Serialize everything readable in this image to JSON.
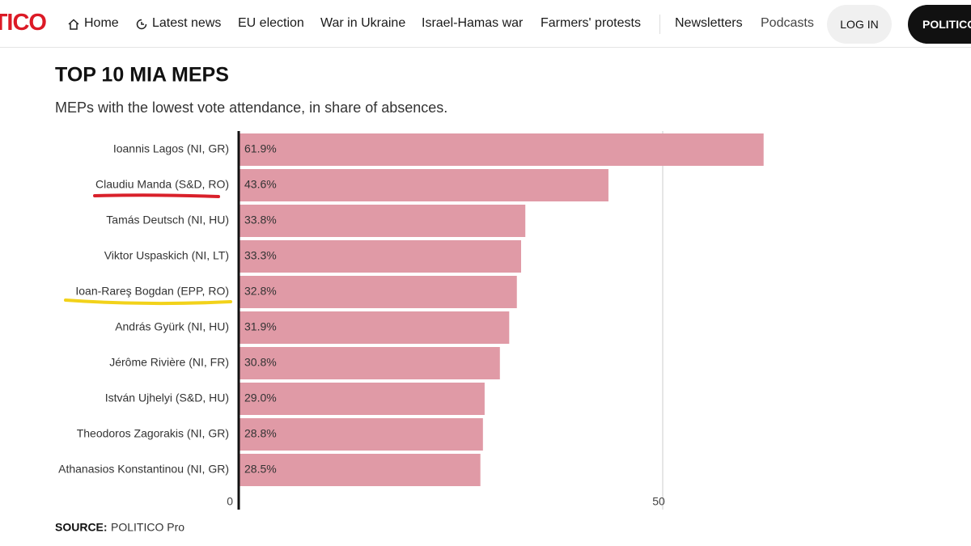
{
  "nav": {
    "logo": "POLITICO",
    "items": [
      "Home",
      "Latest news",
      "EU election",
      "War in Ukraine",
      "Israel-Hamas war",
      "Farmers' protests",
      "Newsletters",
      "Podcasts"
    ],
    "login": "LOG IN",
    "pro": "POLITICO"
  },
  "chart_data": {
    "type": "bar",
    "orientation": "horizontal",
    "title": "TOP 10 MIA MEPS",
    "subtitle": "MEPs with the lowest vote attendance, in share of absences.",
    "categories": [
      "Ioannis Lagos (NI, GR)",
      "Claudiu Manda (S&D, RO)",
      "Tamás Deutsch (NI, HU)",
      "Viktor Uspaskich (NI, LT)",
      "Ioan-Rareş Bogdan (EPP, RO)",
      "András Gyürk (NI, HU)",
      "Jérôme Rivière (NI, FR)",
      "István Ujhelyi (S&D, HU)",
      "Theodoros Zagorakis (NI, GR)",
      "Athanasios Konstantinou (NI, GR)"
    ],
    "values": [
      61.9,
      43.6,
      33.8,
      33.3,
      32.8,
      31.9,
      30.8,
      29.0,
      28.8,
      28.5
    ],
    "value_labels": [
      "61.9%",
      "43.6%",
      "33.8%",
      "33.3%",
      "32.8%",
      "31.9%",
      "30.8%",
      "29.0%",
      "28.8%",
      "28.5%"
    ],
    "color": "#e09aa6",
    "xlim": [
      0,
      62
    ],
    "xticks": [
      0,
      50
    ],
    "grid": true,
    "source_label": "SOURCE:",
    "source": "POLITICO Pro"
  }
}
